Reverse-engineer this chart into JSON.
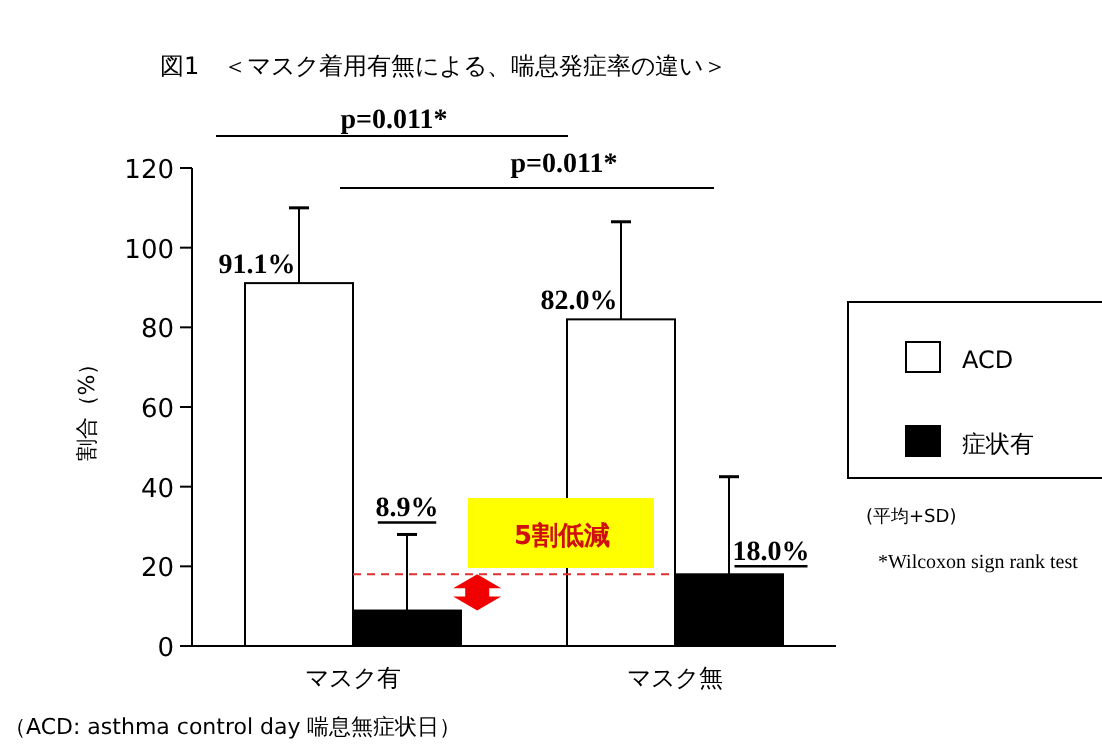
{
  "chart_data": {
    "type": "bar",
    "title": "図1　＜マスク着用有無による、喘息発症率の違い＞",
    "ylabel": "割合（%）",
    "categories": [
      "マスク有",
      "マスク無"
    ],
    "series": [
      {
        "name": "ACD",
        "color": "#ffffff",
        "values": [
          91.1,
          82.0
        ],
        "errors": [
          [
            91.1,
            110
          ],
          [
            82.0,
            106.5
          ]
        ],
        "value_labels": [
          "91.1%",
          "82.0%"
        ]
      },
      {
        "name": "症状有",
        "color": "#000000",
        "values": [
          8.9,
          18.0
        ],
        "errors": [
          [
            8.9,
            28
          ],
          [
            18.0,
            42.5
          ]
        ],
        "value_labels": [
          "8.9%",
          "18.0%"
        ]
      }
    ],
    "ylim": [
      0,
      120
    ],
    "yticks": [
      0,
      20,
      40,
      60,
      80,
      100,
      120
    ],
    "legend": "right",
    "ref_lines": [
      {
        "axis": "y",
        "value": 18,
        "color": "#e03030",
        "line_style": "dashed"
      }
    ],
    "annotations": [
      "p=0.011*",
      "p=0.011*",
      "5割低減",
      "(平均+SD)",
      "*Wilcoxon sign rank test",
      "（ACD: asthma control day 喘息無症状日）"
    ]
  }
}
